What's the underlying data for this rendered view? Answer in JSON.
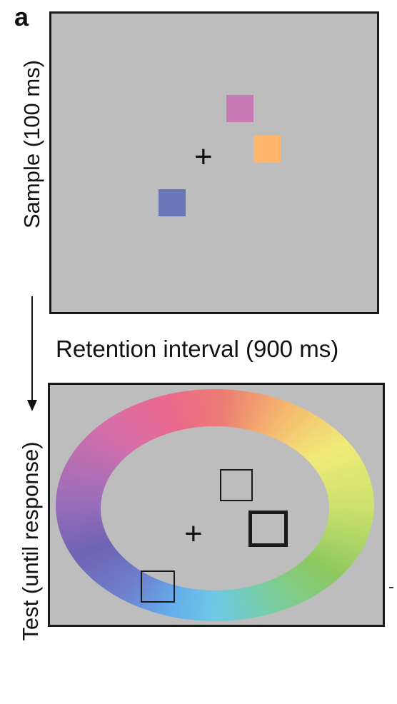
{
  "panel_label": "a",
  "sample": {
    "label": "Sample (100 ms)",
    "fixation": "+",
    "swatch_colors": {
      "pink": "#c87ab4",
      "orange": "#ffb56a",
      "blue": "#6877b8"
    }
  },
  "retention": {
    "label": "Retention interval  (900 ms)"
  },
  "test": {
    "label": "Test (until response)",
    "fixation": "+"
  },
  "colors": {
    "background": "#bdbdbd",
    "frame_border": "#1a1a1a"
  }
}
